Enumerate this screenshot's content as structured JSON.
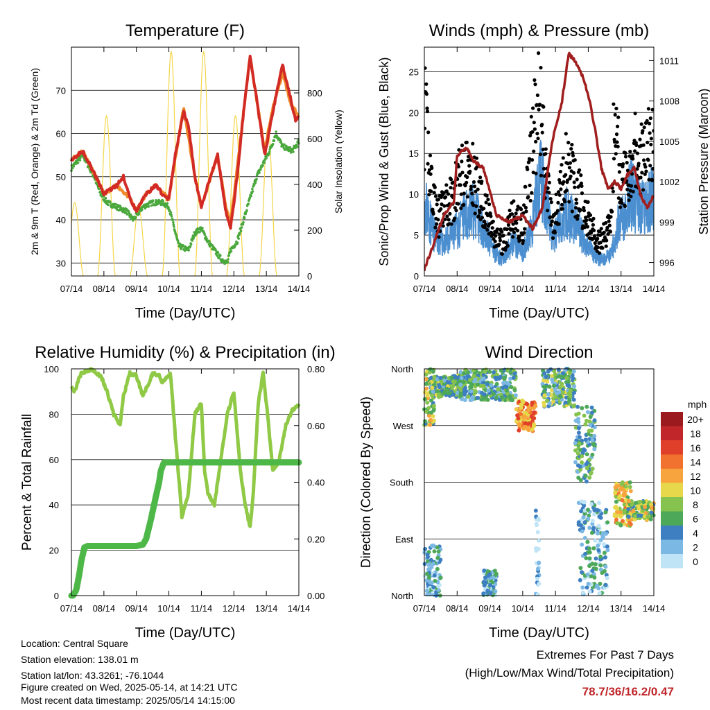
{
  "colors": {
    "temp_red": "#d22a25",
    "temp_orange": "#f08a2b",
    "dewpoint_green": "#4aa83d",
    "solar_yellow": "#f5d547",
    "wind_blue": "#4b8fd0",
    "gust_black": "#000000",
    "pressure_maroon": "#a01e1e",
    "rh_lightgreen": "#8fc946",
    "precip_green": "#4db848",
    "extremes_red": "#c0262a"
  },
  "x_ticks": [
    "07/14",
    "08/14",
    "09/14",
    "10/14",
    "11/14",
    "12/14",
    "13/14",
    "14/14"
  ],
  "chart_data": [
    {
      "type": "line",
      "title": "Temperature (F)",
      "xlabel": "Time (Day/UTC)",
      "ylabel": "2m & 9m T (Red, Orange) & 2m Td (Green)",
      "y2label": "Solar Insolation (Yellow)",
      "ylim": [
        27,
        80
      ],
      "y_ticks": [
        "30",
        "40",
        "50",
        "60",
        "70"
      ],
      "y2lim": [
        0,
        1000
      ],
      "y2_ticks": [
        "0",
        "200",
        "400",
        "600",
        "800"
      ],
      "x": [
        "07/14",
        "08/14",
        "09/14",
        "10/14",
        "11/14",
        "12/14",
        "13/14",
        "14/14"
      ],
      "series": [
        {
          "key": "2m T",
          "color": "#d22a25",
          "x": [
            0,
            0.2,
            0.35,
            0.55,
            0.75,
            1.0,
            1.2,
            1.4,
            1.6,
            1.8,
            2.0,
            2.3,
            2.6,
            2.9,
            3.0,
            3.2,
            3.45,
            3.6,
            3.8,
            4.0,
            4.2,
            4.5,
            4.75,
            4.9,
            5.1,
            5.3,
            5.5,
            5.7,
            5.95,
            6.2,
            6.5,
            6.75,
            6.9,
            7.0
          ],
          "y": [
            54,
            55,
            56,
            53,
            50,
            46,
            47,
            48,
            50,
            45,
            42,
            46,
            48,
            45,
            45,
            55,
            65,
            62,
            50,
            43,
            48,
            55,
            42,
            38,
            50,
            65,
            78,
            68,
            55,
            65,
            76,
            68,
            63,
            64
          ]
        },
        {
          "key": "9m T",
          "color": "#f08a2b",
          "x": [
            0,
            0.35,
            0.75,
            1.0,
            1.4,
            1.8,
            2.0,
            2.3,
            2.6,
            3.0,
            3.45,
            3.8,
            4.0,
            4.5,
            4.75,
            4.9,
            5.3,
            5.5,
            5.7,
            5.95,
            6.2,
            6.5,
            6.75,
            7.0
          ],
          "y": [
            54,
            56,
            50,
            46,
            48,
            45,
            42,
            46,
            48,
            45,
            66,
            50,
            43,
            55,
            43,
            39,
            65,
            78,
            68,
            56,
            66,
            74,
            67,
            64
          ]
        },
        {
          "key": "2m Td",
          "color": "#4aa83d",
          "x": [
            0,
            0.35,
            0.7,
            0.9,
            1.1,
            1.4,
            1.7,
            1.9,
            2.2,
            2.5,
            2.8,
            3.0,
            3.1,
            3.3,
            3.6,
            3.8,
            4.0,
            4.2,
            4.4,
            4.6,
            4.8,
            4.9,
            5.1,
            5.3,
            5.5,
            5.7,
            5.9,
            6.1,
            6.3,
            6.5,
            6.8,
            7.0
          ],
          "y": [
            52,
            55,
            50,
            46,
            44,
            43,
            42,
            40,
            43,
            44,
            44,
            43,
            40,
            34,
            33,
            37,
            38,
            35,
            33,
            31,
            30,
            33,
            35,
            40,
            45,
            50,
            53,
            56,
            60,
            57,
            56,
            58
          ]
        },
        {
          "key": "Solar Insolation",
          "color": "#f5d547",
          "axis": "y2",
          "diurnal_peaks_day": [
            0.1,
            1.08,
            2.07,
            3.07,
            4.07,
            5.05,
            6.05
          ],
          "peak_values": [
            320,
            700,
            300,
            980,
            980,
            700,
            650
          ]
        }
      ]
    },
    {
      "type": "line",
      "title": "Winds (mph) & Pressure (mb)",
      "xlabel": "Time (Day/UTC)",
      "ylabel": "Sonic/Prop Wind & Gust (Blue, Black)",
      "y2label": "Station Pressure (Maroon)",
      "ylim": [
        0,
        28
      ],
      "y_ticks": [
        "0",
        "5",
        "10",
        "15",
        "20",
        "25"
      ],
      "y2lim": [
        995,
        1012
      ],
      "y2_ticks": [
        "996",
        "999",
        "1002",
        "1005",
        "1008",
        "1011"
      ],
      "x": [
        "07/14",
        "08/14",
        "09/14",
        "10/14",
        "11/14",
        "12/14",
        "13/14",
        "14/14"
      ],
      "series": [
        {
          "key": "Wind",
          "color": "#4b8fd0",
          "x": [
            0,
            0.3,
            0.6,
            0.9,
            1.2,
            1.5,
            1.8,
            2.1,
            2.4,
            2.7,
            3.0,
            3.3,
            3.5,
            3.7,
            3.9,
            4.1,
            4.3,
            4.5,
            4.7,
            4.9,
            5.1,
            5.3,
            5.5,
            5.7,
            5.9,
            6.1,
            6.3,
            6.5,
            6.7,
            7.0
          ],
          "y": [
            9,
            5,
            4,
            5,
            7,
            8,
            6,
            3,
            2,
            4,
            3,
            6,
            12,
            10,
            4,
            6,
            8,
            7,
            6,
            4,
            3,
            2,
            2,
            3,
            6,
            8,
            10,
            9,
            8,
            10
          ]
        },
        {
          "key": "Gust",
          "color": "#000000",
          "x": [
            0,
            0.2,
            0.4,
            0.6,
            0.9,
            1.2,
            1.5,
            1.8,
            2.1,
            2.4,
            2.7,
            3.0,
            3.2,
            3.35,
            3.5,
            3.7,
            3.9,
            4.1,
            4.3,
            4.5,
            4.7,
            4.9,
            5.1,
            5.3,
            5.5,
            5.7,
            5.8,
            6.0,
            6.2,
            6.4,
            6.6,
            6.8,
            7.0
          ],
          "y": [
            20,
            12,
            7,
            8,
            10,
            13,
            12,
            9,
            5,
            4,
            7,
            6,
            12,
            18,
            21,
            13,
            6,
            9,
            13,
            12,
            10,
            8,
            6,
            4,
            5,
            7,
            20,
            11,
            12,
            16,
            14,
            15,
            16
          ]
        },
        {
          "key": "Pressure",
          "color": "#a01e1e",
          "axis": "y2",
          "x": [
            0,
            0.3,
            0.6,
            0.9,
            1.0,
            1.3,
            1.5,
            1.8,
            2.2,
            2.6,
            3.0,
            3.3,
            3.6,
            3.9,
            4.2,
            4.4,
            4.6,
            4.8,
            5.0,
            5.2,
            5.4,
            5.6,
            5.8,
            6.0,
            6.2,
            6.4,
            6.6,
            6.8,
            7.0
          ],
          "y": [
            995.5,
            997.5,
            999.5,
            1000.5,
            1004,
            1004.5,
            1003.5,
            1003,
            999.5,
            999,
            999.5,
            998.5,
            1000,
            1005,
            1008,
            1011.5,
            1011,
            1010,
            1008.5,
            1006,
            1003,
            1001.5,
            1002,
            1001.5,
            1002.5,
            1003,
            1001,
            1000,
            1001
          ]
        }
      ]
    },
    {
      "type": "line",
      "title": "Relative Humidity (%) & Precipitation (in)",
      "xlabel": "Time (Day/UTC)",
      "ylabel": "Percent & Total Rainfall",
      "ylim": [
        0,
        100
      ],
      "y_ticks": [
        "0",
        "20",
        "40",
        "60",
        "80",
        "100"
      ],
      "y2lim": [
        0,
        0.8
      ],
      "y2_ticks": [
        "0.00",
        "0.20",
        "0.40",
        "0.60",
        "0.80"
      ],
      "x": [
        "07/14",
        "08/14",
        "09/14",
        "10/14",
        "11/14",
        "12/14",
        "13/14",
        "14/14"
      ],
      "series": [
        {
          "key": "Relative Humidity",
          "color": "#8fc946",
          "x": [
            0,
            0.1,
            0.3,
            0.6,
            0.9,
            1.1,
            1.3,
            1.5,
            1.6,
            1.8,
            2.0,
            2.2,
            2.5,
            2.7,
            2.8,
            3.0,
            3.05,
            3.2,
            3.4,
            3.6,
            3.8,
            4.0,
            4.1,
            4.2,
            4.4,
            4.6,
            4.8,
            5.0,
            5.2,
            5.35,
            5.5,
            5.6,
            5.75,
            5.9,
            6.05,
            6.2,
            6.4,
            6.6,
            6.8,
            7.0
          ],
          "y": [
            93,
            90,
            98,
            100,
            97,
            90,
            80,
            75,
            88,
            98,
            97,
            88,
            98,
            97,
            94,
            97,
            98,
            70,
            35,
            45,
            80,
            85,
            55,
            45,
            40,
            60,
            80,
            90,
            55,
            40,
            30,
            45,
            85,
            98,
            78,
            55,
            60,
            75,
            82,
            84
          ]
        },
        {
          "key": "Total Precipitation",
          "color": "#4db848",
          "axis": "y2",
          "x": [
            0,
            0.05,
            0.15,
            0.25,
            0.3,
            0.4,
            0.5,
            1.0,
            1.5,
            2.0,
            2.2,
            2.3,
            2.45,
            2.6,
            2.7,
            2.75,
            2.85,
            3.0,
            4.0,
            5.0,
            6.0,
            7.0
          ],
          "y": [
            0,
            0,
            0.02,
            0.08,
            0.12,
            0.17,
            0.175,
            0.175,
            0.175,
            0.175,
            0.18,
            0.2,
            0.27,
            0.35,
            0.4,
            0.44,
            0.47,
            0.47,
            0.47,
            0.47,
            0.47,
            0.47
          ]
        }
      ]
    },
    {
      "type": "scatter",
      "title": "Wind Direction",
      "xlabel": "Time (Day/UTC)",
      "ylabel": "Direction (Colored By Speed)",
      "y_ticks": [
        "North",
        "East",
        "South",
        "West",
        "North"
      ],
      "ylim": [
        0,
        360
      ],
      "x": [
        "07/14",
        "08/14",
        "09/14",
        "10/14",
        "11/14",
        "12/14",
        "13/14",
        "14/14"
      ],
      "colorbar": {
        "title": "mph",
        "labels": [
          "20+",
          "18",
          "16",
          "14",
          "12",
          "10",
          "8",
          "6",
          "4",
          "2",
          "0"
        ],
        "colors": [
          "#9a1a1e",
          "#c0262a",
          "#e0402a",
          "#f0722e",
          "#f8a43e",
          "#e6d84a",
          "#86c24e",
          "#4ea85a",
          "#3d7fc1",
          "#7cb8e4",
          "#bfe4f6"
        ]
      },
      "clusters": [
        {
          "x0": 0.0,
          "x1": 0.3,
          "y0": 270,
          "y1": 360,
          "speed": 8
        },
        {
          "x0": 0.2,
          "x1": 1.1,
          "y0": 315,
          "y1": 350,
          "speed": 6
        },
        {
          "x0": 1.1,
          "x1": 2.8,
          "y0": 310,
          "y1": 360,
          "speed": 5
        },
        {
          "x0": 2.8,
          "x1": 3.4,
          "y0": 260,
          "y1": 310,
          "speed": 13
        },
        {
          "x0": 3.6,
          "x1": 4.6,
          "y0": 300,
          "y1": 360,
          "speed": 6
        },
        {
          "x0": 4.6,
          "x1": 5.2,
          "y0": 180,
          "y1": 300,
          "speed": 5
        },
        {
          "x0": 4.7,
          "x1": 5.6,
          "y0": 0,
          "y1": 150,
          "speed": 3
        },
        {
          "x0": 5.8,
          "x1": 6.3,
          "y0": 110,
          "y1": 180,
          "speed": 10
        },
        {
          "x0": 6.2,
          "x1": 7.0,
          "y0": 120,
          "y1": 150,
          "speed": 8
        },
        {
          "x0": 0.0,
          "x1": 0.5,
          "y0": 0,
          "y1": 80,
          "speed": 3
        },
        {
          "x0": 1.8,
          "x1": 2.2,
          "y0": 0,
          "y1": 40,
          "speed": 3
        },
        {
          "x0": 3.4,
          "x1": 3.5,
          "y0": 0,
          "y1": 140,
          "speed": 1
        }
      ]
    }
  ],
  "footer": {
    "location": "Location: Central Square",
    "elevation": "Station elevation: 138.01 m",
    "latlon": "Station lat/lon: 43.3261; -76.1044",
    "created": "Figure created on Wed, 2025-05-14, at 14:21 UTC",
    "recent": "Most recent data timestamp: 2025/05/14 14:15:00"
  },
  "extremes": {
    "title": "Extremes For Past 7 Days",
    "subtitle": "(High/Low/Max Wind/Total Precipitation)",
    "values": "78.7/36/16.2/0.47"
  }
}
